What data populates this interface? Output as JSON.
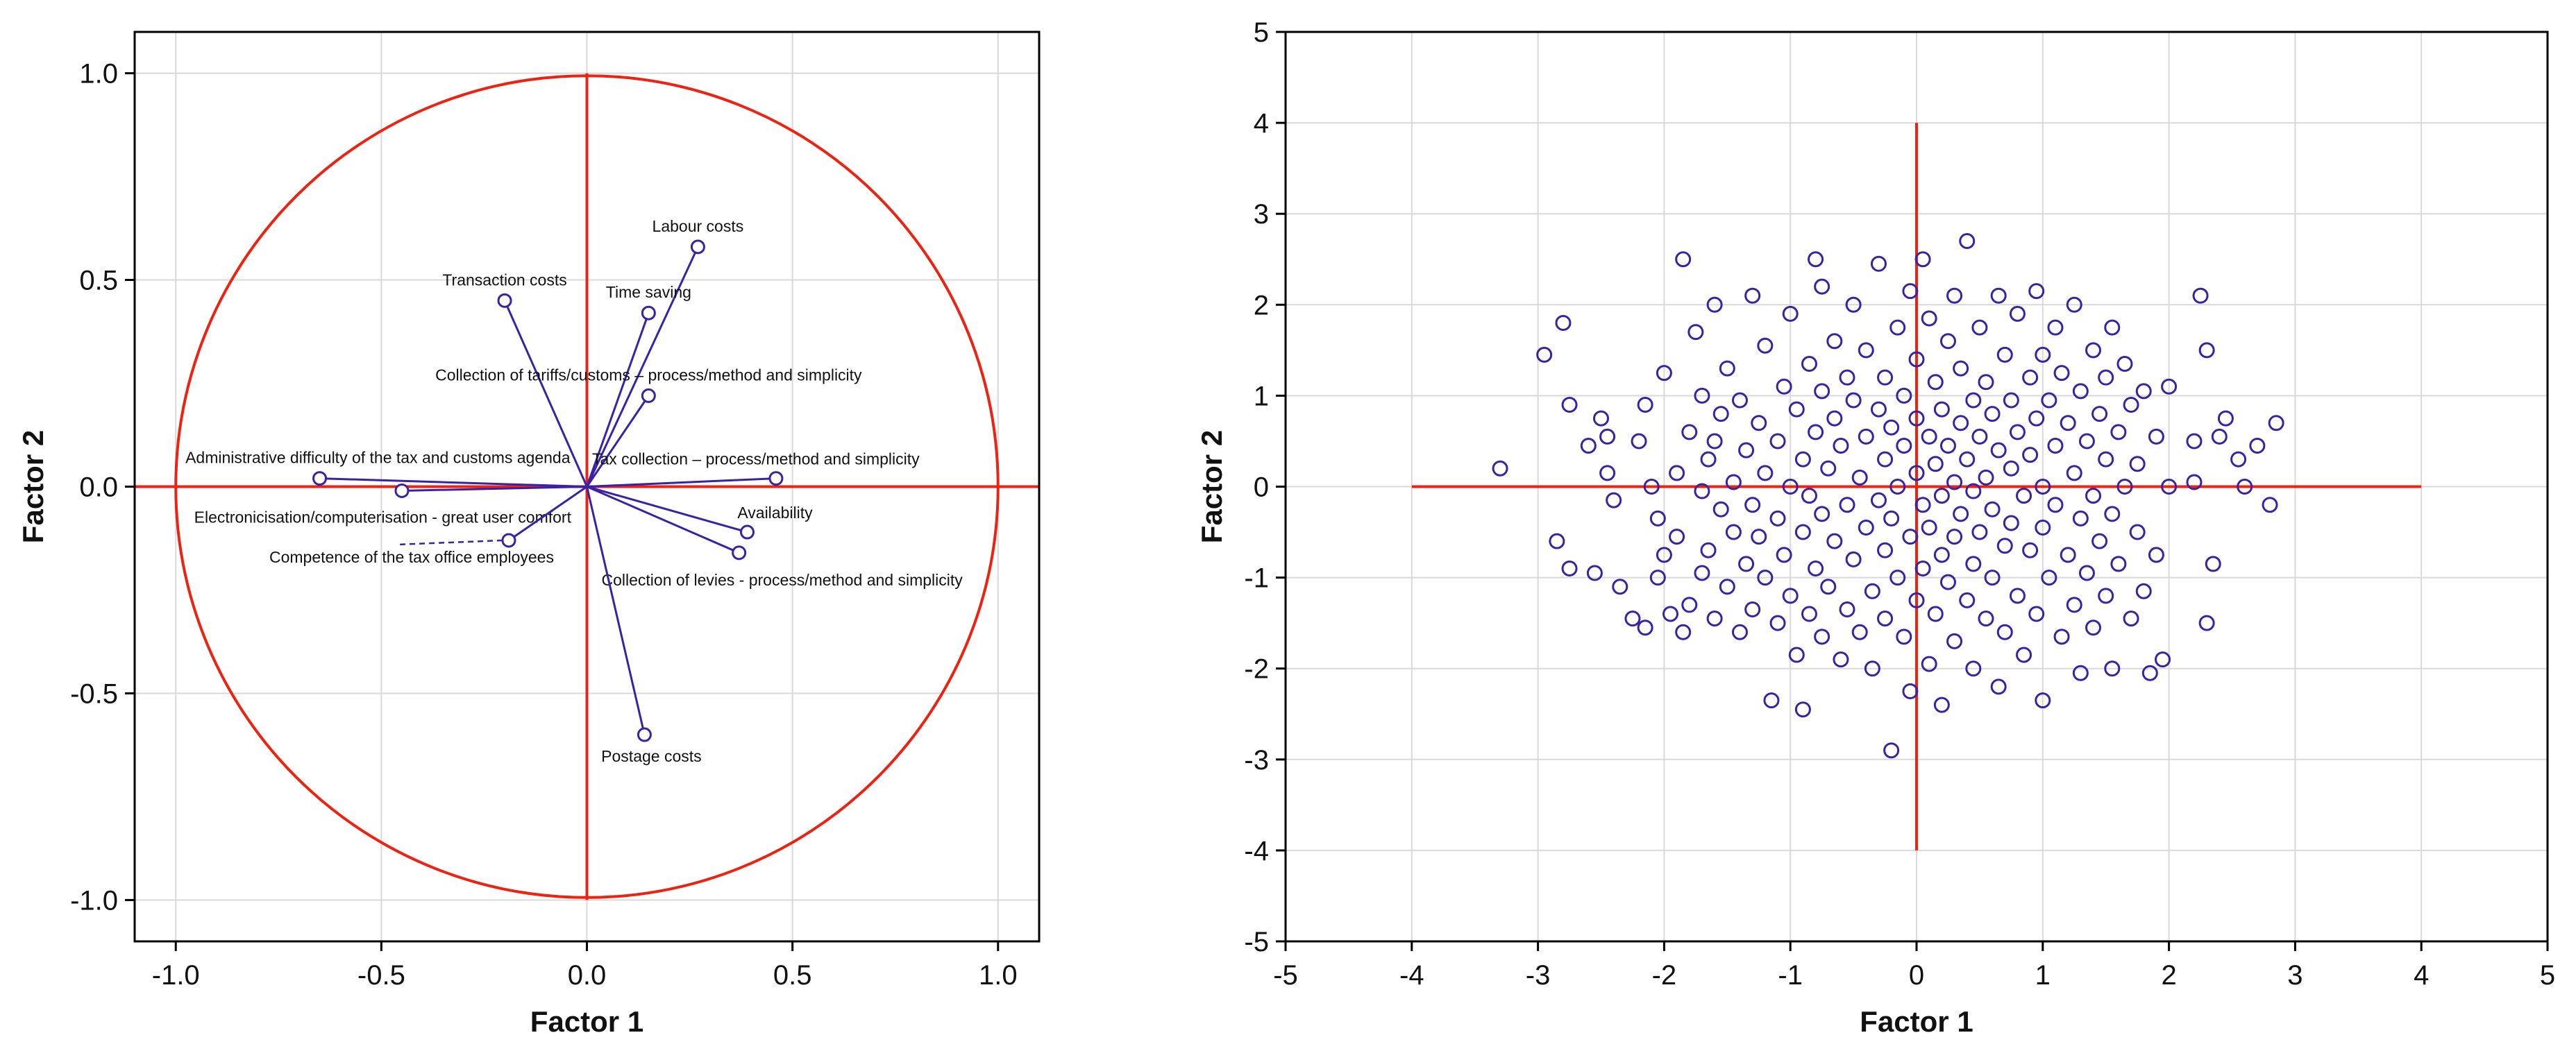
{
  "colors": {
    "accent": "#ee2211",
    "series": "#3a22a8",
    "grid": "#d9d9d9",
    "frame": "#000000"
  },
  "chart_data": [
    {
      "type": "scatter",
      "subtype": "factor-loading-circle",
      "title": "",
      "xlabel": "Factor 1",
      "ylabel": "Factor 2",
      "xlim": [
        -1.1,
        1.1
      ],
      "ylim": [
        -1.1,
        1.1
      ],
      "xticks": [
        "-1.0",
        "-0.5",
        "0.0",
        "0.5",
        "1.0"
      ],
      "yticks": [
        "-1.0",
        "-0.5",
        "0.0",
        "0.5",
        "1.0"
      ],
      "grid": true,
      "unit_circle_radius": 1.0,
      "variables": [
        {
          "label": "Labour costs",
          "x": 0.27,
          "y": 0.58
        },
        {
          "label": "Transaction costs",
          "x": -0.2,
          "y": 0.45
        },
        {
          "label": "Time saving",
          "x": 0.15,
          "y": 0.42
        },
        {
          "label": "Collection of tariffs/customs – process/method and simplicity",
          "x": 0.15,
          "y": 0.22
        },
        {
          "label": "Administrative difficulty of the tax and customs agenda",
          "x": -0.65,
          "y": 0.02
        },
        {
          "label": "Tax collection – process/method and simplicity",
          "x": 0.46,
          "y": 0.02
        },
        {
          "label": "Electronicisation/computerisation - great user comfort",
          "x": -0.45,
          "y": -0.01
        },
        {
          "label": "Availability",
          "x": 0.39,
          "y": -0.11
        },
        {
          "label": "Competence of the tax office employees",
          "x": -0.19,
          "y": -0.13
        },
        {
          "label": "Collection of levies - process/method and simplicity",
          "x": 0.37,
          "y": -0.16
        },
        {
          "label": "Postage costs",
          "x": 0.14,
          "y": -0.6
        }
      ]
    },
    {
      "type": "scatter",
      "title": "",
      "xlabel": "Factor 1",
      "ylabel": "Factor 2",
      "xlim": [
        -5,
        5
      ],
      "ylim": [
        -5,
        5
      ],
      "xticks": [
        "-5",
        "-4",
        "-3",
        "-2",
        "-1",
        "0",
        "1",
        "2",
        "3",
        "4",
        "5"
      ],
      "yticks": [
        "-5",
        "-4",
        "-3",
        "-2",
        "-1",
        "0",
        "1",
        "2",
        "3",
        "4",
        "5"
      ],
      "grid": true,
      "crosshair": {
        "x_range": [
          -4,
          4
        ],
        "y_range": [
          -4,
          4
        ]
      },
      "marker": "open-circle",
      "points": [
        [
          -3.3,
          0.2
        ],
        [
          -2.95,
          1.45
        ],
        [
          -2.85,
          -0.6
        ],
        [
          -2.8,
          1.8
        ],
        [
          -2.75,
          0.9
        ],
        [
          -2.75,
          -0.9
        ],
        [
          -2.6,
          0.45
        ],
        [
          -2.55,
          -0.95
        ],
        [
          -2.5,
          0.75
        ],
        [
          -2.45,
          0.15
        ],
        [
          -2.45,
          0.55
        ],
        [
          -2.4,
          -0.15
        ],
        [
          -2.35,
          -1.1
        ],
        [
          -2.25,
          -1.45
        ],
        [
          -2.2,
          0.5
        ],
        [
          -2.15,
          0.9
        ],
        [
          -2.15,
          -1.55
        ],
        [
          -2.1,
          0.0
        ],
        [
          -2.05,
          -0.35
        ],
        [
          -2.05,
          -1.0
        ],
        [
          -2.0,
          1.25
        ],
        [
          -2.0,
          -0.75
        ],
        [
          -1.95,
          -1.4
        ],
        [
          -1.9,
          0.15
        ],
        [
          -1.9,
          -0.55
        ],
        [
          -1.85,
          2.5
        ],
        [
          -1.85,
          -1.6
        ],
        [
          -1.8,
          0.6
        ],
        [
          -1.8,
          -1.3
        ],
        [
          -1.75,
          1.7
        ],
        [
          -1.7,
          1.0
        ],
        [
          -1.7,
          -0.05
        ],
        [
          -1.7,
          -0.95
        ],
        [
          -1.65,
          0.3
        ],
        [
          -1.65,
          -0.7
        ],
        [
          -1.6,
          2.0
        ],
        [
          -1.6,
          0.5
        ],
        [
          -1.6,
          -1.45
        ],
        [
          -1.55,
          0.8
        ],
        [
          -1.55,
          -0.25
        ],
        [
          -1.5,
          1.3
        ],
        [
          -1.5,
          -1.1
        ],
        [
          -1.45,
          0.05
        ],
        [
          -1.45,
          -0.5
        ],
        [
          -1.4,
          0.95
        ],
        [
          -1.4,
          -1.6
        ],
        [
          -1.35,
          0.4
        ],
        [
          -1.35,
          -0.85
        ],
        [
          -1.3,
          2.1
        ],
        [
          -1.3,
          -0.2
        ],
        [
          -1.3,
          -1.35
        ],
        [
          -1.25,
          0.7
        ],
        [
          -1.25,
          -0.55
        ],
        [
          -1.2,
          1.55
        ],
        [
          -1.2,
          0.15
        ],
        [
          -1.2,
          -1.0
        ],
        [
          -1.15,
          -2.35
        ],
        [
          -1.1,
          0.5
        ],
        [
          -1.1,
          -0.35
        ],
        [
          -1.1,
          -1.5
        ],
        [
          -1.05,
          1.1
        ],
        [
          -1.05,
          -0.75
        ],
        [
          -1.0,
          1.9
        ],
        [
          -1.0,
          0.0
        ],
        [
          -1.0,
          -1.2
        ],
        [
          -0.95,
          0.85
        ],
        [
          -0.95,
          -1.85
        ],
        [
          -0.9,
          0.3
        ],
        [
          -0.9,
          -0.5
        ],
        [
          -0.9,
          -2.45
        ],
        [
          -0.85,
          1.35
        ],
        [
          -0.85,
          -0.1
        ],
        [
          -0.85,
          -1.4
        ],
        [
          -0.8,
          2.5
        ],
        [
          -0.8,
          0.6
        ],
        [
          -0.8,
          -0.9
        ],
        [
          -0.75,
          2.2
        ],
        [
          -0.75,
          1.05
        ],
        [
          -0.75,
          -0.3
        ],
        [
          -0.75,
          -1.65
        ],
        [
          -0.7,
          0.2
        ],
        [
          -0.7,
          -1.1
        ],
        [
          -0.65,
          1.6
        ],
        [
          -0.65,
          0.75
        ],
        [
          -0.65,
          -0.6
        ],
        [
          -0.6,
          -1.9
        ],
        [
          -0.6,
          0.45
        ],
        [
          -0.55,
          -0.2
        ],
        [
          -0.55,
          1.2
        ],
        [
          -0.55,
          -1.35
        ],
        [
          -0.5,
          2.0
        ],
        [
          -0.5,
          0.95
        ],
        [
          -0.5,
          -0.8
        ],
        [
          -0.45,
          0.1
        ],
        [
          -0.45,
          -1.6
        ],
        [
          -0.4,
          1.5
        ],
        [
          -0.4,
          0.55
        ],
        [
          -0.4,
          -0.45
        ],
        [
          -0.35,
          -1.15
        ],
        [
          -0.35,
          -2.0
        ],
        [
          -0.3,
          2.45
        ],
        [
          -0.3,
          0.85
        ],
        [
          -0.3,
          -0.15
        ],
        [
          -0.25,
          1.2
        ],
        [
          -0.25,
          0.3
        ],
        [
          -0.25,
          -0.7
        ],
        [
          -0.25,
          -1.45
        ],
        [
          -0.2,
          0.65
        ],
        [
          -0.2,
          -2.9
        ],
        [
          -0.2,
          -0.35
        ],
        [
          -0.15,
          1.75
        ],
        [
          -0.15,
          0.0
        ],
        [
          -0.15,
          -1.0
        ],
        [
          -0.1,
          1.0
        ],
        [
          -0.1,
          0.45
        ],
        [
          -0.1,
          -1.65
        ],
        [
          -0.05,
          2.15
        ],
        [
          -0.05,
          -0.55
        ],
        [
          -0.05,
          -2.25
        ],
        [
          0.0,
          1.4
        ],
        [
          0.0,
          0.75
        ],
        [
          0.0,
          0.15
        ],
        [
          0.0,
          -1.25
        ],
        [
          0.05,
          2.5
        ],
        [
          0.05,
          -0.2
        ],
        [
          0.05,
          -0.9
        ],
        [
          0.1,
          1.85
        ],
        [
          0.1,
          0.55
        ],
        [
          0.1,
          -0.45
        ],
        [
          0.1,
          -1.95
        ],
        [
          0.15,
          1.15
        ],
        [
          0.15,
          0.25
        ],
        [
          0.15,
          -1.4
        ],
        [
          0.2,
          0.85
        ],
        [
          0.2,
          -0.1
        ],
        [
          0.2,
          -0.75
        ],
        [
          0.2,
          -2.4
        ],
        [
          0.25,
          1.6
        ],
        [
          0.25,
          0.45
        ],
        [
          0.25,
          -1.05
        ],
        [
          0.3,
          2.1
        ],
        [
          0.3,
          0.05
        ],
        [
          0.3,
          -0.55
        ],
        [
          0.3,
          -1.7
        ],
        [
          0.35,
          1.3
        ],
        [
          0.35,
          0.7
        ],
        [
          0.35,
          -0.3
        ],
        [
          0.4,
          2.7
        ],
        [
          0.4,
          0.3
        ],
        [
          0.4,
          -1.25
        ],
        [
          0.45,
          0.95
        ],
        [
          0.45,
          -0.05
        ],
        [
          0.45,
          -0.85
        ],
        [
          0.45,
          -2.0
        ],
        [
          0.5,
          1.75
        ],
        [
          0.5,
          0.55
        ],
        [
          0.5,
          -0.5
        ],
        [
          0.55,
          1.15
        ],
        [
          0.55,
          0.1
        ],
        [
          0.55,
          -1.45
        ],
        [
          0.6,
          0.8
        ],
        [
          0.6,
          -0.25
        ],
        [
          0.6,
          -1.0
        ],
        [
          0.65,
          2.1
        ],
        [
          0.65,
          0.4
        ],
        [
          0.65,
          -2.2
        ],
        [
          0.7,
          1.45
        ],
        [
          0.7,
          -0.65
        ],
        [
          0.7,
          -1.6
        ],
        [
          0.75,
          0.95
        ],
        [
          0.75,
          0.2
        ],
        [
          0.75,
          -0.4
        ],
        [
          0.8,
          1.9
        ],
        [
          0.8,
          0.6
        ],
        [
          0.8,
          -1.2
        ],
        [
          0.85,
          -0.1
        ],
        [
          0.85,
          -1.85
        ],
        [
          0.9,
          1.2
        ],
        [
          0.9,
          0.35
        ],
        [
          0.9,
          -0.7
        ],
        [
          0.95,
          2.15
        ],
        [
          0.95,
          0.75
        ],
        [
          0.95,
          -1.4
        ],
        [
          1.0,
          1.45
        ],
        [
          1.0,
          0.0
        ],
        [
          1.0,
          -0.45
        ],
        [
          1.0,
          -2.35
        ],
        [
          1.05,
          0.95
        ],
        [
          1.05,
          -1.0
        ],
        [
          1.1,
          1.75
        ],
        [
          1.1,
          0.45
        ],
        [
          1.1,
          -0.2
        ],
        [
          1.15,
          1.25
        ],
        [
          1.15,
          -1.65
        ],
        [
          1.2,
          0.7
        ],
        [
          1.2,
          -0.75
        ],
        [
          1.25,
          2.0
        ],
        [
          1.25,
          0.15
        ],
        [
          1.25,
          -1.3
        ],
        [
          1.3,
          1.05
        ],
        [
          1.3,
          -0.35
        ],
        [
          1.3,
          -2.05
        ],
        [
          1.35,
          0.5
        ],
        [
          1.35,
          -0.95
        ],
        [
          1.4,
          1.5
        ],
        [
          1.4,
          -0.1
        ],
        [
          1.4,
          -1.55
        ],
        [
          1.45,
          0.8
        ],
        [
          1.45,
          -0.6
        ],
        [
          1.5,
          1.2
        ],
        [
          1.5,
          0.3
        ],
        [
          1.5,
          -1.2
        ],
        [
          1.55,
          1.75
        ],
        [
          1.55,
          -0.3
        ],
        [
          1.55,
          -2.0
        ],
        [
          1.6,
          0.6
        ],
        [
          1.6,
          -0.85
        ],
        [
          1.65,
          1.35
        ],
        [
          1.65,
          0.0
        ],
        [
          1.7,
          0.9
        ],
        [
          1.7,
          -1.45
        ],
        [
          1.75,
          0.25
        ],
        [
          1.75,
          -0.5
        ],
        [
          1.8,
          1.05
        ],
        [
          1.8,
          -1.15
        ],
        [
          1.85,
          -2.05
        ],
        [
          1.9,
          0.55
        ],
        [
          1.9,
          -0.75
        ],
        [
          1.95,
          -1.9
        ],
        [
          2.0,
          0.0
        ],
        [
          2.0,
          1.1
        ],
        [
          2.2,
          0.5
        ],
        [
          2.2,
          0.05
        ],
        [
          2.25,
          2.1
        ],
        [
          2.3,
          1.5
        ],
        [
          2.3,
          -1.5
        ],
        [
          2.35,
          -0.85
        ],
        [
          2.4,
          0.55
        ],
        [
          2.45,
          0.75
        ],
        [
          2.55,
          0.3
        ],
        [
          2.6,
          0.0
        ],
        [
          2.7,
          0.45
        ],
        [
          2.8,
          -0.2
        ],
        [
          2.85,
          0.7
        ]
      ]
    }
  ]
}
